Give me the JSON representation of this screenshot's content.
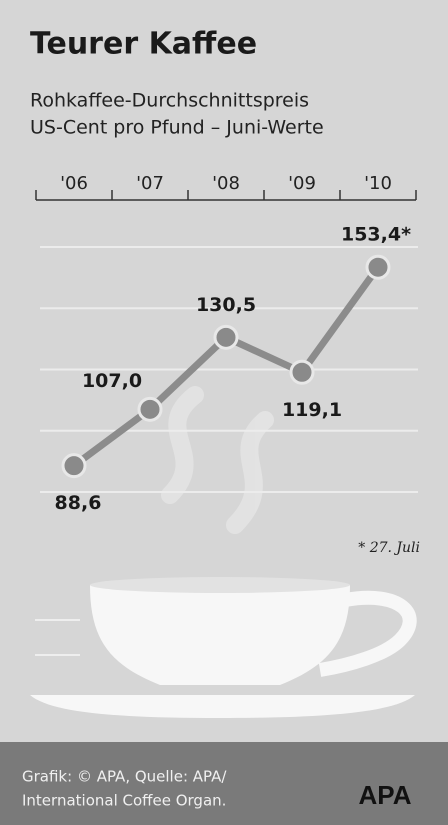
{
  "chart_data": {
    "type": "line",
    "title": "Teurer Kaffee",
    "subtitle": [
      "Rohkaffee-Durchschnittspreis",
      "US-Cent pro Pfund – Juni-Werte"
    ],
    "categories": [
      "'06",
      "'07",
      "'08",
      "'09",
      "'10"
    ],
    "values": [
      88.6,
      107.0,
      130.5,
      119.1,
      153.4
    ],
    "value_labels": [
      "88,6",
      "107,0",
      "130,5",
      "119,1",
      "153,4*"
    ],
    "color": "#8c8c8c",
    "ylim": [
      80,
      160
    ],
    "yticks": [
      80,
      100,
      120,
      140,
      160
    ],
    "grid": true,
    "footnote": "* 27. Juli",
    "source": [
      "Grafik: © APA, Quelle: APA/",
      "International Coffee Organ."
    ],
    "logo": "APA"
  }
}
